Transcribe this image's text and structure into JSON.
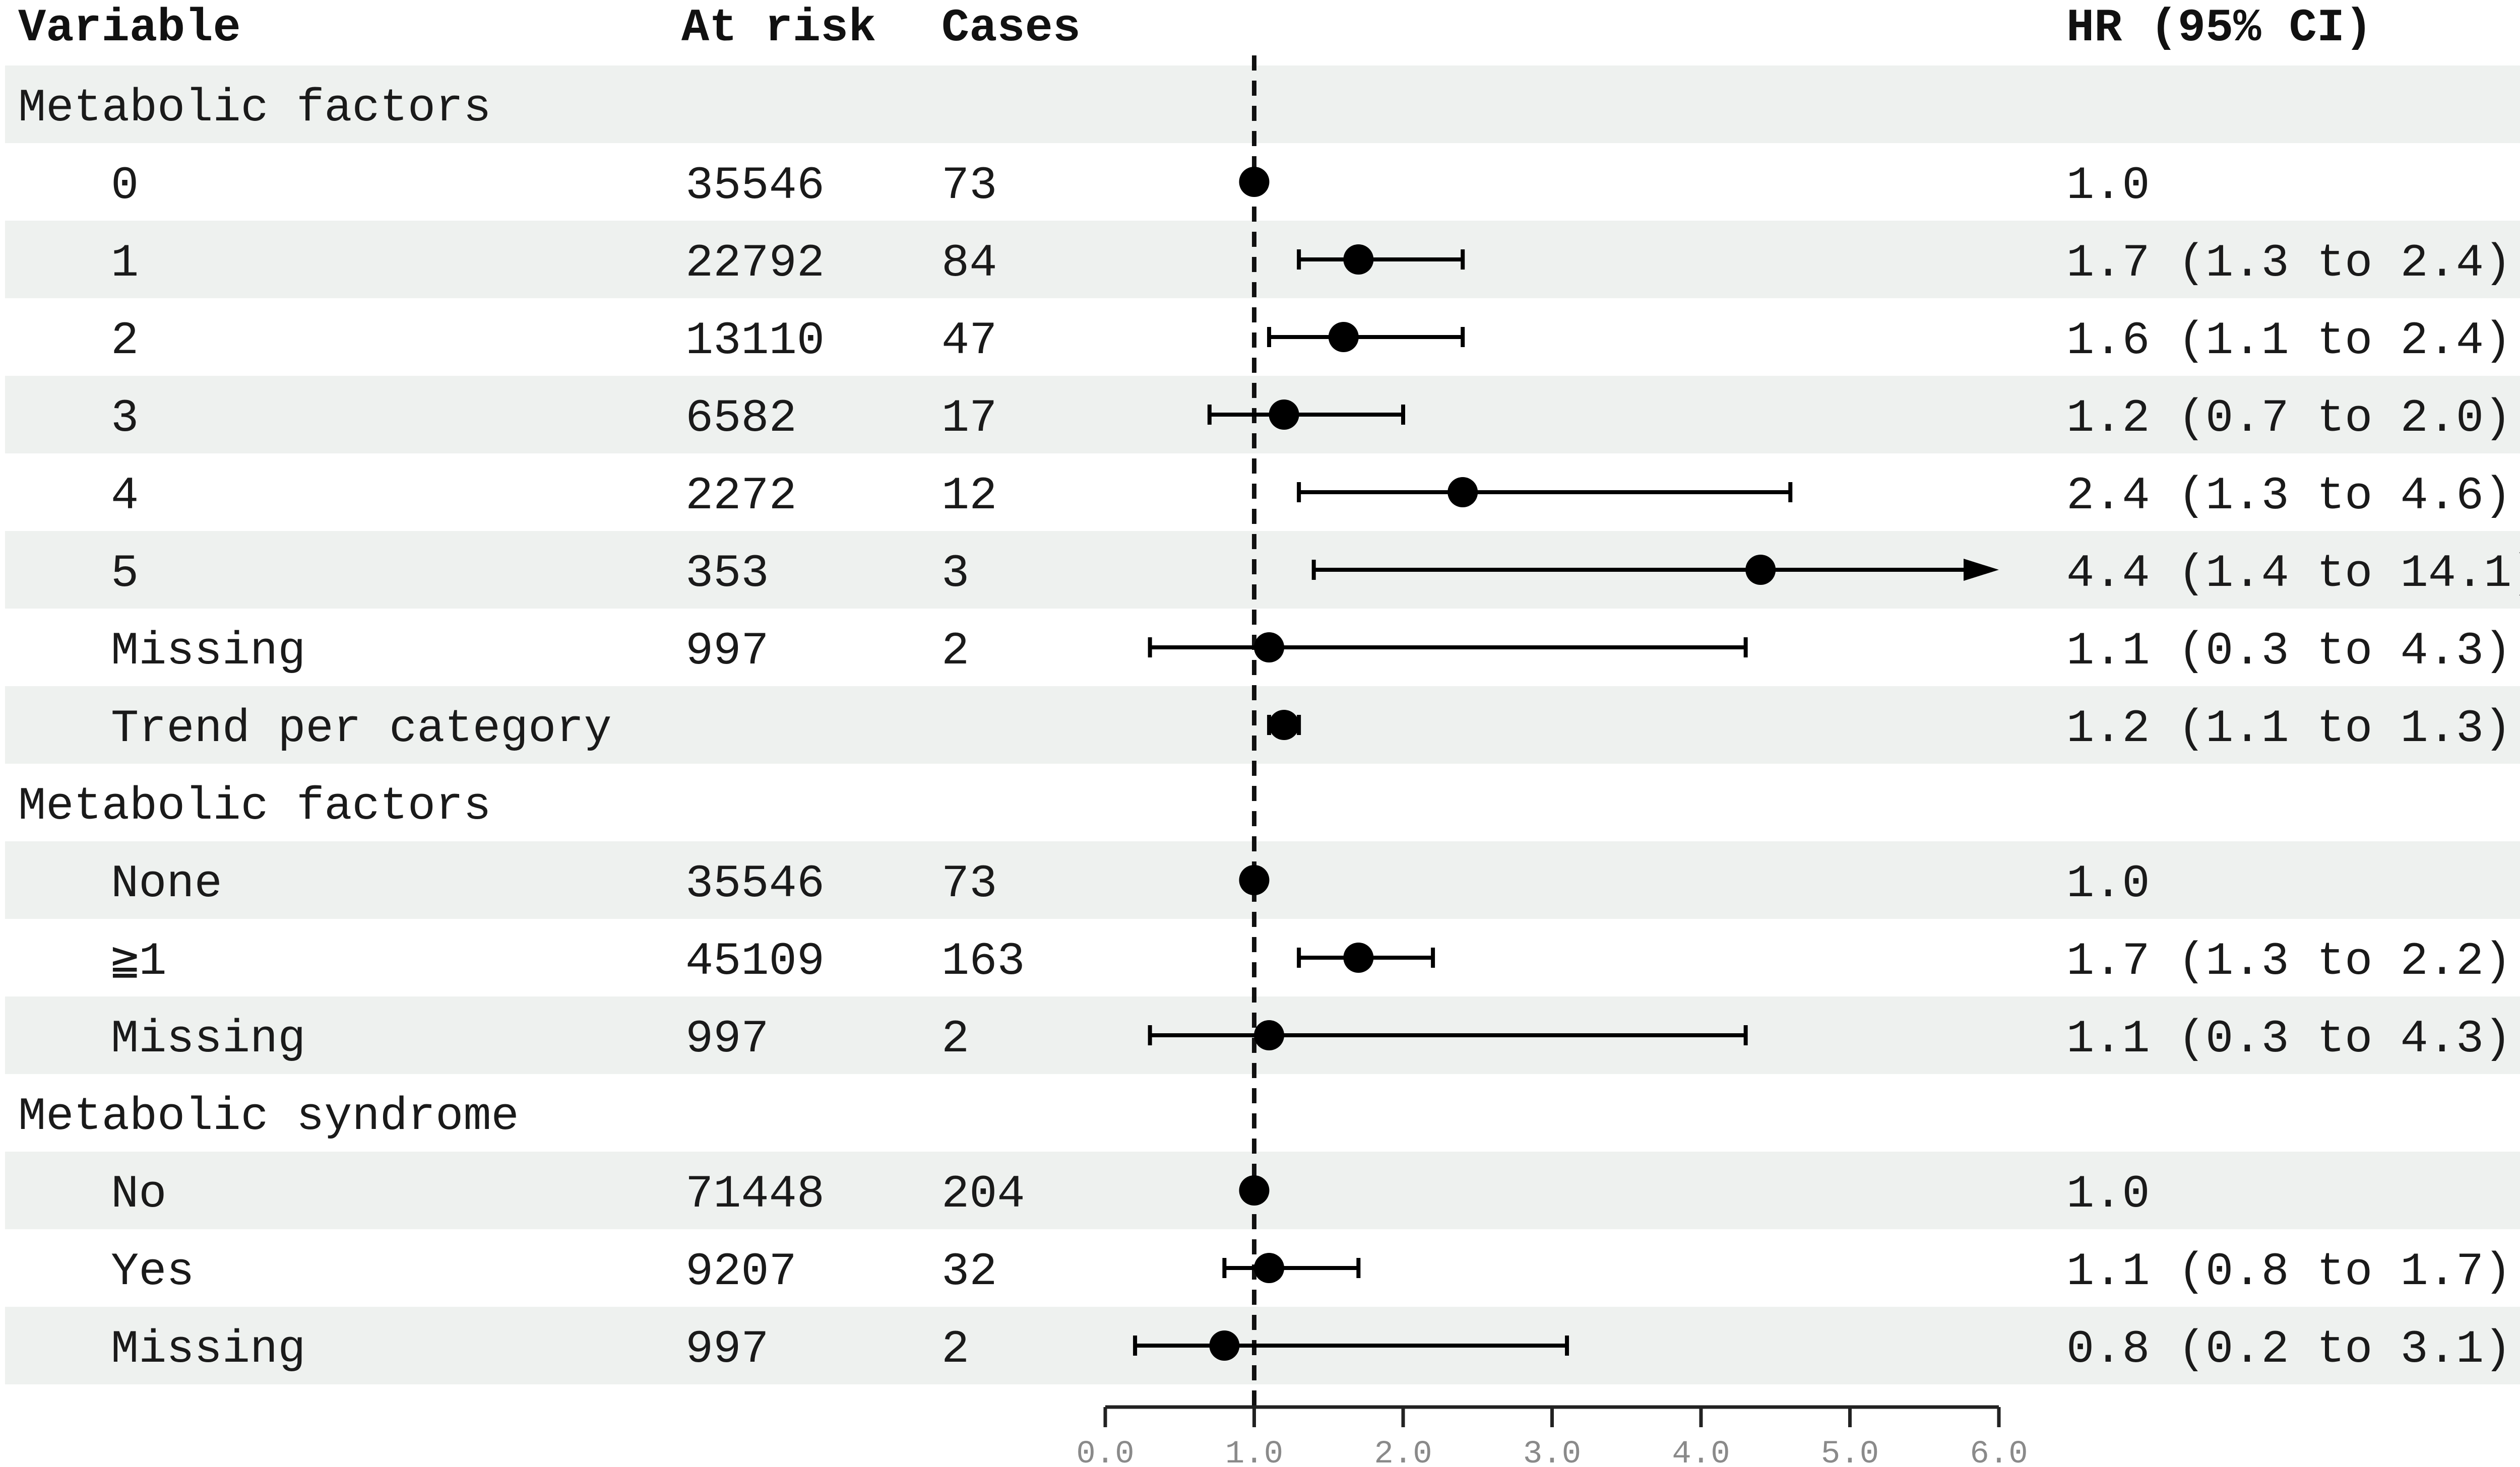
{
  "chart_data": {
    "type": "forest",
    "headers": {
      "variable": "Variable",
      "at_risk": "At risk",
      "cases": "Cases",
      "hr": "HR (95% CI)"
    },
    "reference_line": 1.0,
    "xlim": [
      0,
      6
    ],
    "x_ticks": [
      "0.0",
      "1.0",
      "2.0",
      "3.0",
      "4.0",
      "5.0",
      "6.0"
    ],
    "colors": {
      "stripe": "#eef1ef",
      "marker": "#000000",
      "text": "#1a1a1a",
      "tick": "#8a8a8a"
    },
    "rows": [
      {
        "kind": "group",
        "label": "Metabolic factors"
      },
      {
        "kind": "item",
        "label": "0",
        "at_risk": "35546",
        "cases": "73",
        "hr": 1.0,
        "lo": null,
        "hi": null,
        "hr_text": "1.0"
      },
      {
        "kind": "item",
        "label": "1",
        "at_risk": "22792",
        "cases": "84",
        "hr": 1.7,
        "lo": 1.3,
        "hi": 2.4,
        "hr_text": "1.7 (1.3 to 2.4)"
      },
      {
        "kind": "item",
        "label": "2",
        "at_risk": "13110",
        "cases": "47",
        "hr": 1.6,
        "lo": 1.1,
        "hi": 2.4,
        "hr_text": "1.6 (1.1 to 2.4)"
      },
      {
        "kind": "item",
        "label": "3",
        "at_risk": "6582",
        "cases": "17",
        "hr": 1.2,
        "lo": 0.7,
        "hi": 2.0,
        "hr_text": "1.2 (0.7 to 2.0)"
      },
      {
        "kind": "item",
        "label": "4",
        "at_risk": "2272",
        "cases": "12",
        "hr": 2.4,
        "lo": 1.3,
        "hi": 4.6,
        "hr_text": "2.4 (1.3 to 4.6)"
      },
      {
        "kind": "item",
        "label": "5",
        "at_risk": "353",
        "cases": "3",
        "hr": 4.4,
        "lo": 1.4,
        "hi": 14.1,
        "hr_text": "4.4 (1.4 to 14.1)"
      },
      {
        "kind": "item",
        "label": "Missing",
        "at_risk": "997",
        "cases": "2",
        "hr": 1.1,
        "lo": 0.3,
        "hi": 4.3,
        "hr_text": "1.1 (0.3 to 4.3)"
      },
      {
        "kind": "item",
        "label": "Trend per category",
        "at_risk": "",
        "cases": "",
        "hr": 1.2,
        "lo": 1.1,
        "hi": 1.3,
        "hr_text": "1.2 (1.1 to 1.3)"
      },
      {
        "kind": "group",
        "label": "Metabolic factors"
      },
      {
        "kind": "item",
        "label": "None",
        "at_risk": "35546",
        "cases": "73",
        "hr": 1.0,
        "lo": null,
        "hi": null,
        "hr_text": "1.0"
      },
      {
        "kind": "item",
        "label": "≧1",
        "at_risk": "45109",
        "cases": "163",
        "hr": 1.7,
        "lo": 1.3,
        "hi": 2.2,
        "hr_text": "1.7 (1.3 to 2.2)"
      },
      {
        "kind": "item",
        "label": "Missing",
        "at_risk": "997",
        "cases": "2",
        "hr": 1.1,
        "lo": 0.3,
        "hi": 4.3,
        "hr_text": "1.1 (0.3 to 4.3)"
      },
      {
        "kind": "group",
        "label": "Metabolic syndrome"
      },
      {
        "kind": "item",
        "label": "No",
        "at_risk": "71448",
        "cases": "204",
        "hr": 1.0,
        "lo": null,
        "hi": null,
        "hr_text": "1.0"
      },
      {
        "kind": "item",
        "label": "Yes",
        "at_risk": "9207",
        "cases": "32",
        "hr": 1.1,
        "lo": 0.8,
        "hi": 1.7,
        "hr_text": "1.1 (0.8 to 1.7)"
      },
      {
        "kind": "item",
        "label": "Missing",
        "at_risk": "997",
        "cases": "2",
        "hr": 0.8,
        "lo": 0.2,
        "hi": 3.1,
        "hr_text": "0.8 (0.2 to 3.1)"
      }
    ]
  }
}
